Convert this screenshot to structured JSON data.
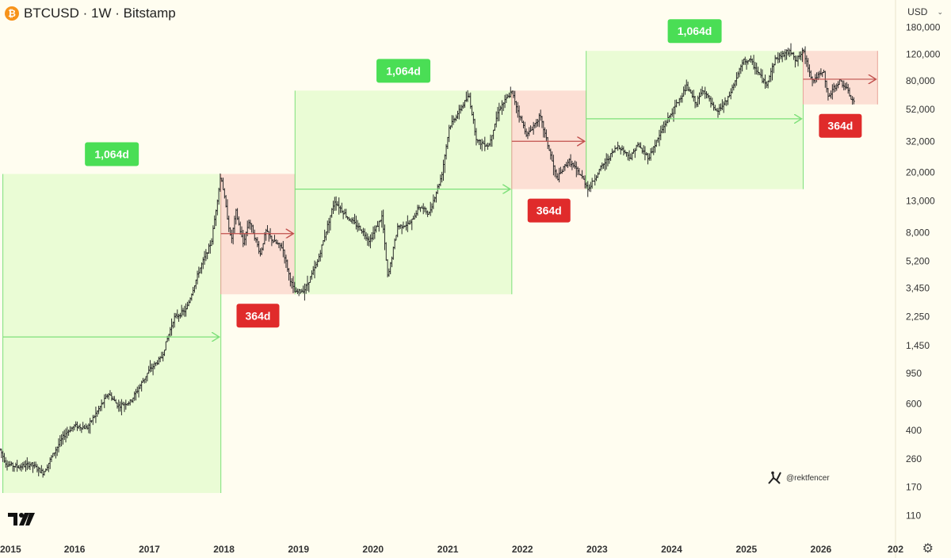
{
  "header": {
    "icon_symbol": "₿",
    "title": "BTCUSD · 1W · Bitstamp"
  },
  "currency": {
    "label": "USD"
  },
  "watermark": {
    "handle": "@rektfencer"
  },
  "colors": {
    "background": "#fffdf0",
    "bull_zone": "#e6fbd0",
    "bull_border": "#7ee07a",
    "bull_label": "#4ade55",
    "bear_zone": "#fcd9cf",
    "bear_border": "#e8a39a",
    "bear_label": "#e02b2b",
    "bear_arrow": "#c0504d",
    "candles": "#2a2a2a"
  },
  "chart_data": {
    "type": "line",
    "xlabel": "",
    "ylabel": "",
    "y_scale": "log",
    "ylim": [
      85,
      190000
    ],
    "xlim": [
      "2015-01-01",
      "2027-01-01"
    ],
    "x_ticks": [
      "2015",
      "2016",
      "2017",
      "2018",
      "2019",
      "2020",
      "2021",
      "2022",
      "2023",
      "2024",
      "2025",
      "2026",
      "202"
    ],
    "y_ticks": [
      "180,000",
      "120,000",
      "80,000",
      "52,000",
      "32,000",
      "20,000",
      "13,000",
      "8,000",
      "5,200",
      "3,450",
      "2,250",
      "1,450",
      "950",
      "600",
      "400",
      "260",
      "170",
      "110"
    ],
    "price_series": [
      [
        "2015-01-01",
        300
      ],
      [
        "2015-02-01",
        240
      ],
      [
        "2015-04-01",
        230
      ],
      [
        "2015-06-01",
        240
      ],
      [
        "2015-08-01",
        210
      ],
      [
        "2015-10-01",
        300
      ],
      [
        "2015-11-15",
        380
      ],
      [
        "2016-01-01",
        430
      ],
      [
        "2016-03-01",
        415
      ],
      [
        "2016-06-15",
        700
      ],
      [
        "2016-08-01",
        580
      ],
      [
        "2016-10-01",
        620
      ],
      [
        "2017-01-01",
        1000
      ],
      [
        "2017-03-01",
        1200
      ],
      [
        "2017-05-01",
        2200
      ],
      [
        "2017-07-01",
        2500
      ],
      [
        "2017-09-01",
        4500
      ],
      [
        "2017-11-01",
        7000
      ],
      [
        "2017-12-17",
        19500
      ],
      [
        "2018-02-05",
        7000
      ],
      [
        "2018-03-01",
        11000
      ],
      [
        "2018-04-05",
        6800
      ],
      [
        "2018-05-05",
        9700
      ],
      [
        "2018-06-28",
        5800
      ],
      [
        "2018-07-25",
        8200
      ],
      [
        "2018-09-01",
        7000
      ],
      [
        "2018-10-15",
        6400
      ],
      [
        "2018-11-20",
        4000
      ],
      [
        "2018-12-15",
        3200
      ],
      [
        "2019-02-01",
        3400
      ],
      [
        "2019-04-01",
        5000
      ],
      [
        "2019-06-26",
        13000
      ],
      [
        "2019-09-01",
        10000
      ],
      [
        "2019-11-01",
        8500
      ],
      [
        "2019-12-15",
        7100
      ],
      [
        "2020-02-14",
        10300
      ],
      [
        "2020-03-13",
        4000
      ],
      [
        "2020-04-30",
        8800
      ],
      [
        "2020-07-01",
        9200
      ],
      [
        "2020-08-15",
        12000
      ],
      [
        "2020-10-01",
        10700
      ],
      [
        "2020-12-01",
        19000
      ],
      [
        "2021-01-08",
        40000
      ],
      [
        "2021-04-14",
        64000
      ],
      [
        "2021-05-23",
        32000
      ],
      [
        "2021-07-20",
        30000
      ],
      [
        "2021-09-07",
        52000
      ],
      [
        "2021-11-10",
        68000
      ],
      [
        "2021-12-20",
        46000
      ],
      [
        "2022-01-24",
        35000
      ],
      [
        "2022-03-28",
        47000
      ],
      [
        "2022-05-12",
        28000
      ],
      [
        "2022-06-18",
        18000
      ],
      [
        "2022-08-15",
        24000
      ],
      [
        "2022-10-15",
        19000
      ],
      [
        "2022-11-21",
        15500
      ],
      [
        "2023-01-15",
        21000
      ],
      [
        "2023-04-14",
        30000
      ],
      [
        "2023-06-15",
        25000
      ],
      [
        "2023-07-15",
        30500
      ],
      [
        "2023-09-11",
        25000
      ],
      [
        "2023-12-01",
        42000
      ],
      [
        "2024-03-14",
        73000
      ],
      [
        "2024-05-01",
        57000
      ],
      [
        "2024-06-05",
        71000
      ],
      [
        "2024-08-05",
        49000
      ],
      [
        "2024-10-01",
        60000
      ],
      [
        "2024-12-17",
        108000
      ],
      [
        "2025-01-20",
        109000
      ],
      [
        "2025-04-07",
        75000
      ],
      [
        "2025-05-22",
        111000
      ],
      [
        "2025-07-14",
        123000
      ],
      [
        "2025-08-14",
        124000
      ],
      [
        "2025-09-01",
        108000
      ],
      [
        "2025-10-06",
        126000
      ],
      [
        "2025-11-21",
        80000
      ],
      [
        "2025-12-15",
        86000
      ],
      [
        "2026-01-15",
        90000
      ],
      [
        "2026-02-05",
        62000
      ],
      [
        "2026-03-01",
        70000
      ],
      [
        "2026-04-01",
        80000
      ],
      [
        "2026-05-01",
        73000
      ],
      [
        "2026-06-01",
        60000
      ],
      [
        "2026-06-15",
        58000
      ]
    ],
    "zones": [
      {
        "kind": "bull",
        "start": "2015-01-15",
        "end": "2017-12-17",
        "low": 155,
        "high": 19500,
        "label": "1,064d",
        "arrow_price": 1650,
        "label_position": "above"
      },
      {
        "kind": "bear",
        "start": "2017-12-17",
        "end": "2018-12-15",
        "low": 3150,
        "high": 19500,
        "label": "364d",
        "arrow_price": 7900,
        "label_position": "below"
      },
      {
        "kind": "bull",
        "start": "2018-12-15",
        "end": "2021-11-10",
        "low": 3150,
        "high": 69000,
        "label": "1,064d",
        "arrow_price": 15500,
        "label_position": "above"
      },
      {
        "kind": "bear",
        "start": "2021-11-10",
        "end": "2022-11-09",
        "low": 15500,
        "high": 69000,
        "label": "364d",
        "arrow_price": 32000,
        "label_position": "below"
      },
      {
        "kind": "bull",
        "start": "2022-11-09",
        "end": "2025-10-06",
        "low": 15500,
        "high": 126000,
        "label": "1,064d",
        "arrow_price": 45000,
        "label_position": "above"
      },
      {
        "kind": "bear",
        "start": "2025-10-06",
        "end": "2026-10-05",
        "low": 56000,
        "high": 126000,
        "label": "364d",
        "arrow_price": 82000,
        "label_position": "below"
      }
    ]
  }
}
